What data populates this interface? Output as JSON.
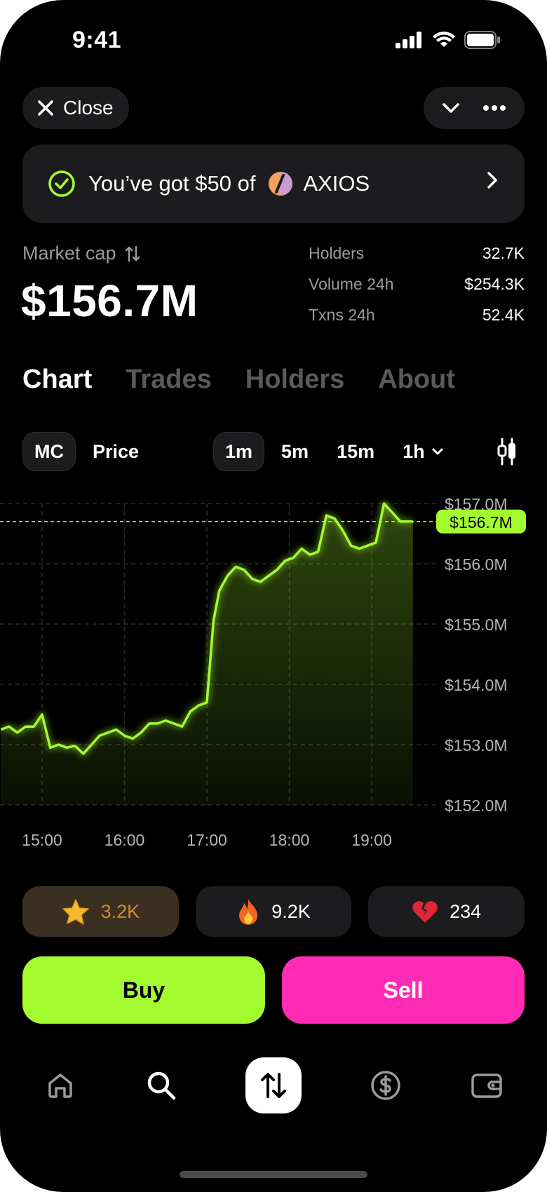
{
  "status_bar": {
    "time": "9:41"
  },
  "header": {
    "close_label": "Close"
  },
  "banner": {
    "text": "You’ve got $50 of",
    "token": "AXIOS"
  },
  "market": {
    "label": "Market cap",
    "value": "$156.7M",
    "stats": [
      {
        "key": "Holders",
        "value": "32.7K"
      },
      {
        "key": "Volume 24h",
        "value": "$254.3K"
      },
      {
        "key": "Txns 24h",
        "value": "52.4K"
      }
    ]
  },
  "tabs": [
    "Chart",
    "Trades",
    "Holders",
    "About"
  ],
  "chart_controls": {
    "mode": [
      "MC",
      "Price"
    ],
    "intervals": [
      "1m",
      "5m",
      "15m",
      "1h"
    ]
  },
  "chart_data": {
    "type": "area",
    "y_ticks": [
      "$157.0M",
      "$156.0M",
      "$155.0M",
      "$154.0M",
      "$153.0M",
      "$152.0M"
    ],
    "x_ticks": [
      "15:00",
      "16:00",
      "17:00",
      "18:00",
      "19:00"
    ],
    "current_label": "$156.7M",
    "ylim": [
      152.0,
      157.0
    ],
    "x": [
      14.5,
      14.6,
      14.7,
      14.8,
      14.9,
      15.0,
      15.1,
      15.2,
      15.3,
      15.4,
      15.5,
      15.6,
      15.7,
      15.8,
      15.9,
      16.0,
      16.1,
      16.2,
      16.3,
      16.4,
      16.5,
      16.6,
      16.7,
      16.8,
      16.9,
      17.0,
      17.08,
      17.15,
      17.25,
      17.35,
      17.45,
      17.55,
      17.65,
      17.75,
      17.85,
      17.95,
      18.05,
      18.15,
      18.25,
      18.35,
      18.45,
      18.55,
      18.65,
      18.75,
      18.85,
      18.95,
      19.05,
      19.15,
      19.25,
      19.35,
      19.45,
      19.5
    ],
    "values": [
      153.25,
      153.3,
      153.2,
      153.3,
      153.3,
      153.5,
      152.95,
      153.0,
      152.95,
      152.98,
      152.85,
      153.0,
      153.15,
      153.2,
      153.25,
      153.15,
      153.1,
      153.2,
      153.35,
      153.35,
      153.4,
      153.35,
      153.3,
      153.55,
      153.65,
      153.7,
      155.05,
      155.55,
      155.8,
      155.95,
      155.9,
      155.75,
      155.7,
      155.8,
      155.9,
      156.05,
      156.1,
      156.25,
      156.15,
      156.2,
      156.8,
      156.75,
      156.55,
      156.3,
      156.25,
      156.3,
      156.35,
      157.0,
      156.85,
      156.7,
      156.7,
      156.7
    ],
    "grid": true,
    "fill_end_x": 19.5
  },
  "reactions": [
    {
      "icon": "star-icon",
      "count": "3.2K"
    },
    {
      "icon": "fire-icon",
      "count": "9.2K"
    },
    {
      "icon": "broken-heart-icon",
      "count": "234"
    }
  ],
  "actions": {
    "buy": "Buy",
    "sell": "Sell"
  },
  "colors": {
    "accent": "#a3fb2f",
    "sell": "#ff2bb4",
    "background": "#000000"
  }
}
